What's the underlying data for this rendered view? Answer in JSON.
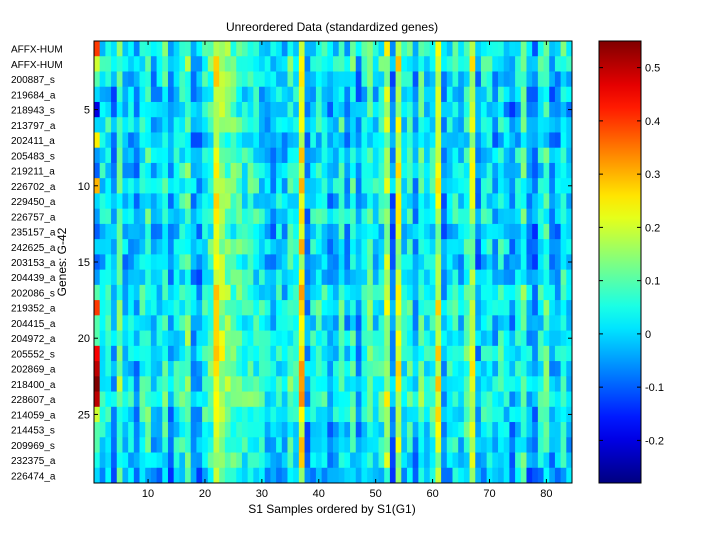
{
  "chart_data": {
    "type": "heatmap",
    "title": "Unreordered Data (standardized genes)",
    "xlabel": "S1 Samples ordered by S1(G1)",
    "ylabel": "Genes: G-42",
    "xlim": [
      0.5,
      84.5
    ],
    "n_columns": 84,
    "n_rows": 29,
    "row_labels": [
      "AFFX-HUM",
      "AFFX-HUM",
      "200887_s",
      "219684_a",
      "218943_s",
      "213797_a",
      "202411_a",
      "205483_s",
      "219211_a",
      "226702_a",
      "229450_a",
      "226757_a",
      "235157_a",
      "242625_a",
      "203153_a",
      "204439_a",
      "202086_s",
      "219352_a",
      "204415_a",
      "204972_a",
      "205552_s",
      "202869_a",
      "218400_a",
      "228607_a",
      "214059_a",
      "214453_s",
      "209969_s",
      "232375_a",
      "226474_a"
    ],
    "x_ticks": [
      10,
      20,
      30,
      40,
      50,
      60,
      70,
      80
    ],
    "y_ticks": [
      5,
      10,
      15,
      20,
      25
    ],
    "colorbar": {
      "min": -0.28,
      "max": 0.55,
      "ticks": [
        0.5,
        0.4,
        0.3,
        0.2,
        0.1,
        0,
        -0.1,
        -0.2
      ],
      "colormap": "jet"
    },
    "column_means": [
      0.06,
      0.02,
      0.04,
      -0.04,
      0.1,
      -0.02,
      0.0,
      -0.05,
      0.03,
      0.06,
      -0.03,
      0.0,
      0.06,
      -0.06,
      0.02,
      0.05,
      0.1,
      -0.04,
      -0.05,
      0.04,
      0.08,
      0.22,
      0.16,
      0.12,
      0.09,
      0.08,
      0.05,
      0.06,
      0.04,
      0.02,
      0.0,
      -0.03,
      0.02,
      -0.02,
      0.06,
      0.03,
      0.24,
      -0.06,
      0.02,
      0.04,
      0.03,
      -0.04,
      0.0,
      0.06,
      -0.02,
      0.05,
      -0.05,
      0.03,
      0.08,
      0.02,
      0.04,
      0.17,
      -0.06,
      0.2,
      0.01,
      0.05,
      -0.04,
      0.08,
      0.02,
      0.05,
      0.2,
      -0.04,
      0.02,
      0.04,
      0.0,
      0.06,
      0.18,
      -0.05,
      0.02,
      0.03,
      -0.02,
      0.04,
      0.0,
      -0.05,
      0.02,
      0.08,
      -0.03,
      -0.07,
      0.02,
      0.07,
      -0.04,
      -0.02,
      0.05,
      -0.01
    ],
    "row_offsets": [
      0.02,
      0.03,
      0.0,
      -0.02,
      -0.02,
      0.0,
      -0.03,
      0.0,
      0.0,
      0.01,
      -0.01,
      0.01,
      -0.02,
      0.0,
      -0.02,
      -0.01,
      0.02,
      0.02,
      0.0,
      0.01,
      0.02,
      0.02,
      0.03,
      0.03,
      0.02,
      0.0,
      0.0,
      -0.01,
      -0.04
    ],
    "column1_values": [
      0.4,
      0.2,
      0.1,
      0.0,
      -0.2,
      0.0,
      0.25,
      -0.05,
      -0.1,
      0.3,
      0.0,
      -0.05,
      -0.1,
      0.0,
      -0.1,
      -0.05,
      0.1,
      0.4,
      0.1,
      0.1,
      0.45,
      0.5,
      0.55,
      0.5,
      0.2,
      0.1,
      0.1,
      0.05,
      0.0
    ]
  }
}
